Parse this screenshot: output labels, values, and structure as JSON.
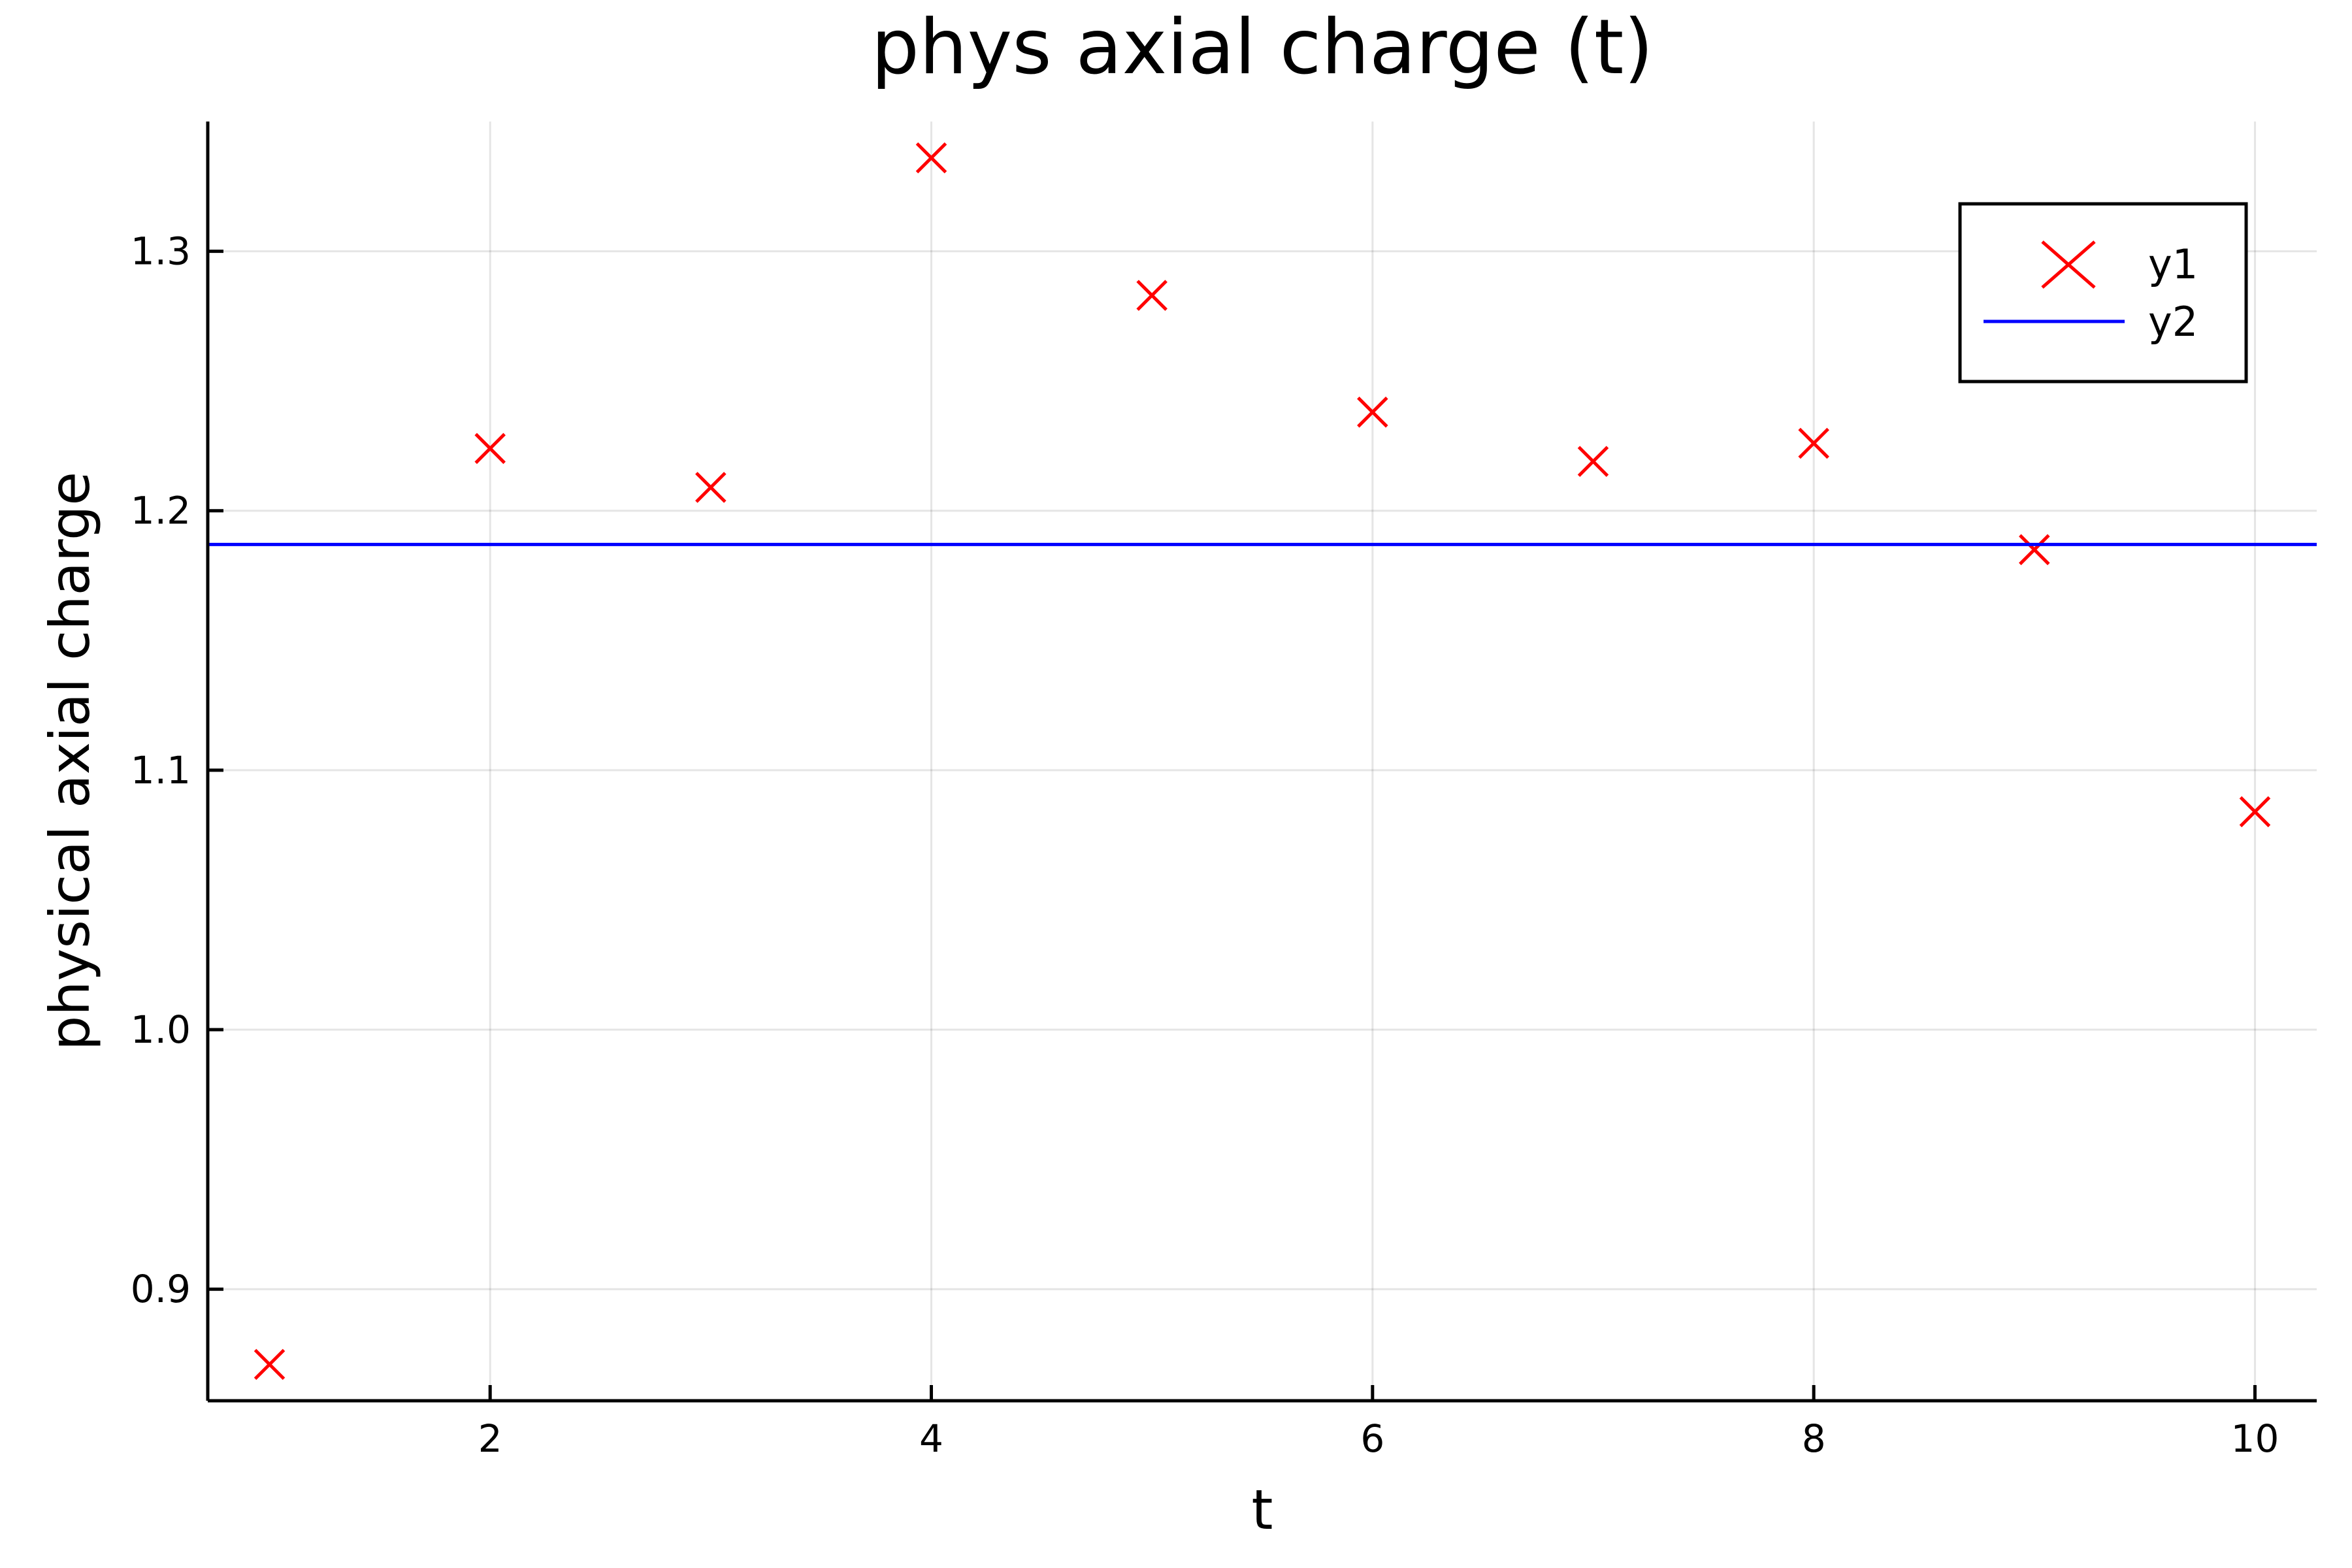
{
  "chart_data": {
    "type": "scatter",
    "title": "phys axial charge (t)",
    "xlabel": "t",
    "ylabel": "physical axial charge",
    "xlim": [
      0.72,
      10.28
    ],
    "ylim": [
      0.857,
      1.35
    ],
    "xticks": [
      2,
      4,
      6,
      8,
      10
    ],
    "yticks": [
      0.9,
      1.0,
      1.1,
      1.2,
      1.3
    ],
    "xtick_labels": [
      "2",
      "4",
      "6",
      "8",
      "10"
    ],
    "ytick_labels": [
      "0.9",
      "1.0",
      "1.1",
      "1.2",
      "1.3"
    ],
    "grid": true,
    "legend_position": "top-right",
    "series": [
      {
        "name": "y1",
        "kind": "scatter",
        "marker": "x",
        "color": "#ff0000",
        "x": [
          1,
          2,
          3,
          4,
          5,
          6,
          7,
          8,
          9,
          10
        ],
        "y": [
          0.871,
          1.224,
          1.209,
          1.336,
          1.283,
          1.238,
          1.219,
          1.226,
          1.185,
          1.084
        ]
      },
      {
        "name": "y2",
        "kind": "line",
        "color": "#0000ff",
        "x": [
          0.72,
          10.28
        ],
        "y": [
          1.187,
          1.187
        ]
      }
    ]
  }
}
